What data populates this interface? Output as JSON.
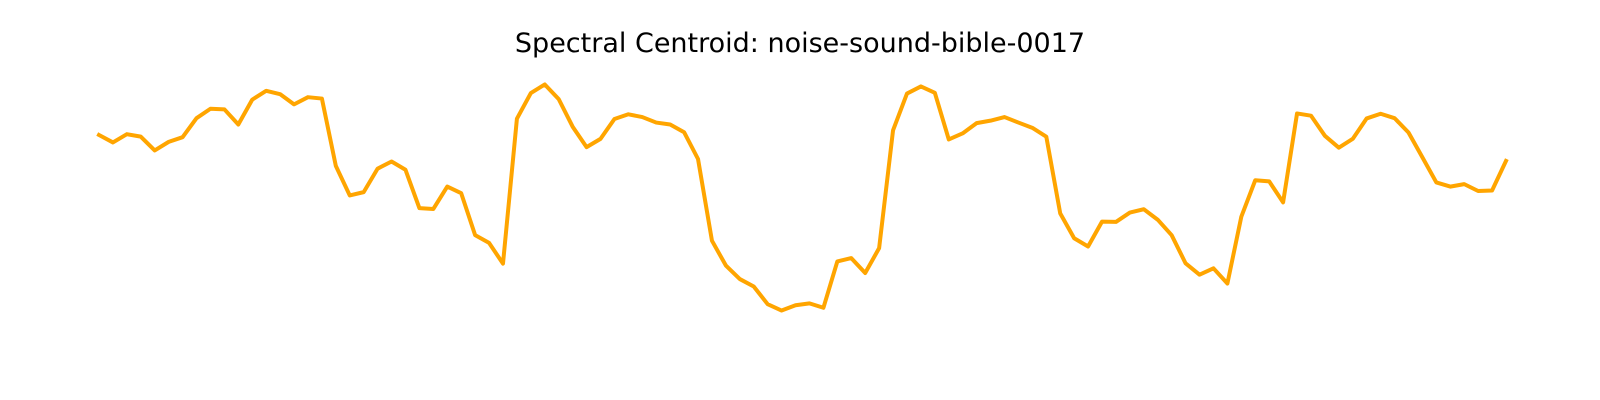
{
  "chart_data": {
    "type": "line",
    "title": "Spectral Centroid: noise-sound-bible-0017",
    "xlabel": "",
    "ylabel": "",
    "axes_visible": false,
    "grid": false,
    "legend": "none",
    "color": "#FFA500",
    "ylim": [
      0,
      100
    ],
    "series": [
      {
        "values": [
          80.8,
          78.1,
          81.1,
          80.2,
          75.2,
          78.3,
          80.0,
          86.9,
          90.3,
          90.1,
          84.6,
          93.6,
          96.8,
          95.6,
          91.9,
          94.5,
          94.0,
          69.6,
          58.9,
          60.1,
          68.6,
          71.2,
          68.2,
          54.3,
          54.0,
          62.1,
          59.7,
          44.5,
          41.7,
          34.2,
          86.7,
          96.0,
          99.1,
          93.8,
          83.8,
          76.4,
          79.4,
          86.6,
          88.3,
          87.3,
          85.3,
          84.6,
          81.8,
          72.1,
          42.5,
          33.5,
          28.6,
          25.9,
          19.5,
          17.2,
          19.1,
          19.8,
          18.2,
          35.0,
          36.2,
          30.8,
          39.8,
          82.5,
          95.8,
          98.4,
          96.1,
          79.2,
          81.4,
          85.1,
          86.0,
          87.3,
          85.3,
          83.4,
          80.2,
          52.4,
          43.4,
          40.4,
          49.4,
          49.3,
          52.7,
          53.9,
          50.1,
          44.5,
          34.3,
          30.2,
          32.5,
          27.0,
          51.2,
          64.4,
          64.0,
          56.4,
          88.6,
          87.8,
          80.5,
          76.2,
          79.4,
          86.8,
          88.5,
          86.9,
          81.7,
          72.7,
          63.6,
          62.1,
          63.0,
          60.5,
          60.7,
          71.4
        ]
      }
    ]
  }
}
